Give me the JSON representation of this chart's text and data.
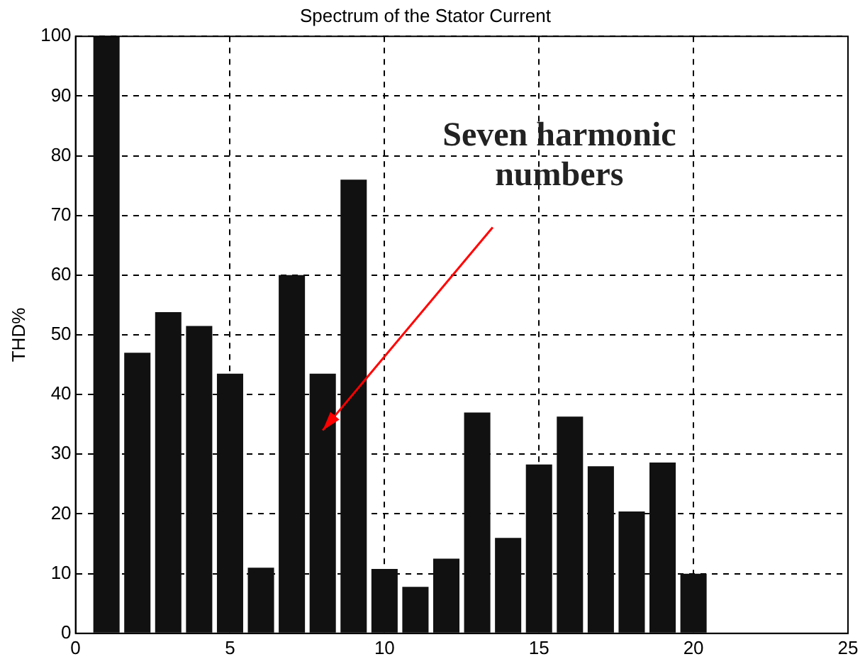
{
  "chart_data": {
    "type": "bar",
    "title": "Spectrum of the Stator Current",
    "ylabel": "THD%",
    "x": [
      1,
      2,
      3,
      4,
      5,
      6,
      7,
      8,
      9,
      10,
      11,
      12,
      13,
      14,
      15,
      16,
      17,
      18,
      19,
      20
    ],
    "values": [
      100,
      47,
      53.8,
      51.5,
      43.5,
      11,
      60,
      43.5,
      76,
      10.8,
      7.8,
      12.5,
      37,
      16,
      28.3,
      36.3,
      28,
      20.4,
      28.6,
      10
    ],
    "color": "#111111",
    "xlim": [
      0,
      25
    ],
    "xticks": [
      0,
      5,
      10,
      15,
      20,
      25
    ],
    "ylim": [
      0,
      100
    ],
    "yticks": [
      0,
      10,
      20,
      30,
      40,
      50,
      60,
      70,
      80,
      90,
      100
    ],
    "grid": true,
    "line_style": "dashed",
    "annotations": [
      "Seven harmonic numbers"
    ]
  }
}
